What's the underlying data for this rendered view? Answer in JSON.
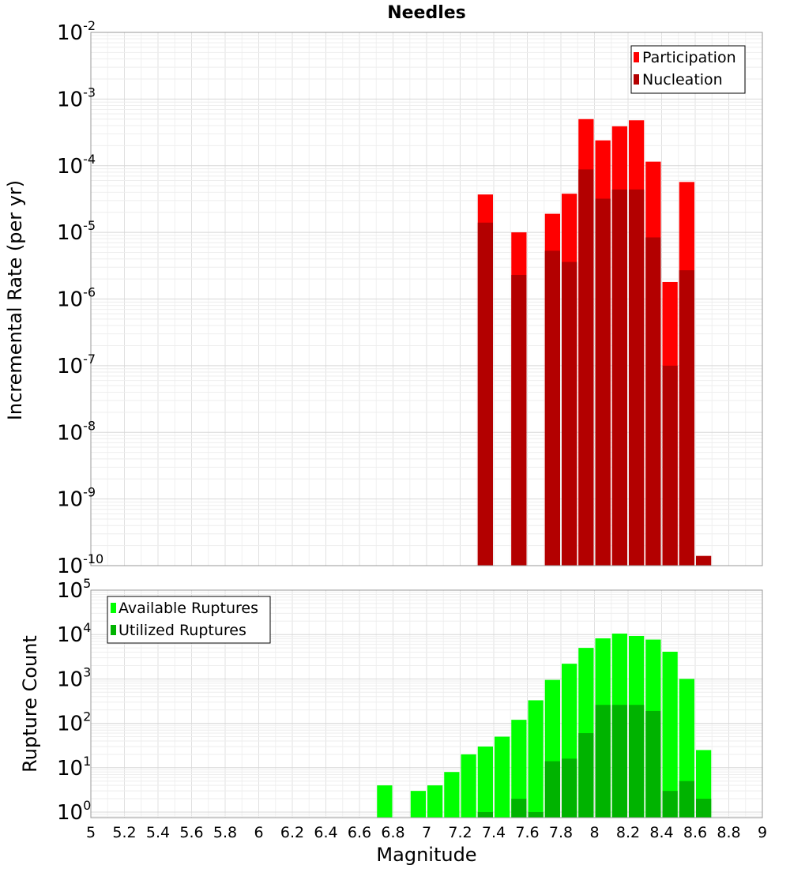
{
  "chart_data": [
    {
      "type": "bar",
      "title": "Needles",
      "xlabel": "",
      "ylabel": "Incremental Rate (per yr)",
      "y_scale": "log",
      "ylim": [
        1e-10,
        0.01
      ],
      "y_ticks": [
        "10^-10",
        "10^-9",
        "10^-8",
        "10^-7",
        "10^-6",
        "10^-5",
        "10^-4",
        "10^-3",
        "10^-2"
      ],
      "xlim": [
        5,
        9
      ],
      "grid": true,
      "legend_position": "top-right",
      "bar_width": 0.1,
      "series": [
        {
          "name": "Participation",
          "color": "#ff0000",
          "x": [
            7.35,
            7.55,
            7.75,
            7.85,
            7.95,
            8.05,
            8.15,
            8.25,
            8.35,
            8.45,
            8.55
          ],
          "values": [
            3.7e-05,
            1e-05,
            1.9e-05,
            3.8e-05,
            0.0005,
            0.00024,
            0.00039,
            0.00048,
            0.000115,
            1.8e-06,
            5.7e-05
          ]
        },
        {
          "name": "Nucleation",
          "color": "#b30000",
          "x": [
            7.35,
            7.55,
            7.75,
            7.85,
            7.95,
            8.05,
            8.15,
            8.25,
            8.35,
            8.45,
            8.55,
            8.65
          ],
          "values": [
            1.4e-05,
            2.3e-06,
            5.3e-06,
            3.6e-06,
            8.8e-05,
            3.2e-05,
            4.4e-05,
            4.4e-05,
            8.4e-06,
            1e-07,
            2.7e-06,
            1.4e-10
          ]
        }
      ]
    },
    {
      "type": "bar",
      "title": "",
      "xlabel": "Magnitude",
      "ylabel": "Rupture Count",
      "y_scale": "log",
      "ylim": [
        0.75,
        100000
      ],
      "y_ticks": [
        "10^0",
        "10^1",
        "10^2",
        "10^3",
        "10^4",
        "10^5"
      ],
      "xlim": [
        5,
        9
      ],
      "x_ticks": [
        "5",
        "5.2",
        "5.4",
        "5.6",
        "5.8",
        "6",
        "6.2",
        "6.4",
        "6.6",
        "6.8",
        "7",
        "7.2",
        "7.4",
        "7.6",
        "7.8",
        "8",
        "8.2",
        "8.4",
        "8.6",
        "8.8",
        "9"
      ],
      "grid": true,
      "legend_position": "top-left",
      "bar_width": 0.1,
      "series": [
        {
          "name": "Available Ruptures",
          "color": "#00ff00",
          "x": [
            6.75,
            6.95,
            7.05,
            7.15,
            7.25,
            7.35,
            7.45,
            7.55,
            7.65,
            7.75,
            7.85,
            7.95,
            8.05,
            8.15,
            8.25,
            8.35,
            8.45,
            8.55,
            8.65
          ],
          "values": [
            4,
            3,
            4,
            8,
            20,
            30,
            50,
            120,
            330,
            950,
            2200,
            5000,
            8200,
            10500,
            9300,
            7700,
            4100,
            1000,
            25
          ]
        },
        {
          "name": "Utilized Ruptures",
          "color": "#00b300",
          "x": [
            7.35,
            7.55,
            7.65,
            7.75,
            7.85,
            7.95,
            8.05,
            8.15,
            8.25,
            8.35,
            8.45,
            8.55,
            8.65
          ],
          "values": [
            1,
            2,
            1,
            14,
            16,
            60,
            260,
            260,
            260,
            190,
            3,
            5,
            2
          ]
        }
      ]
    }
  ]
}
